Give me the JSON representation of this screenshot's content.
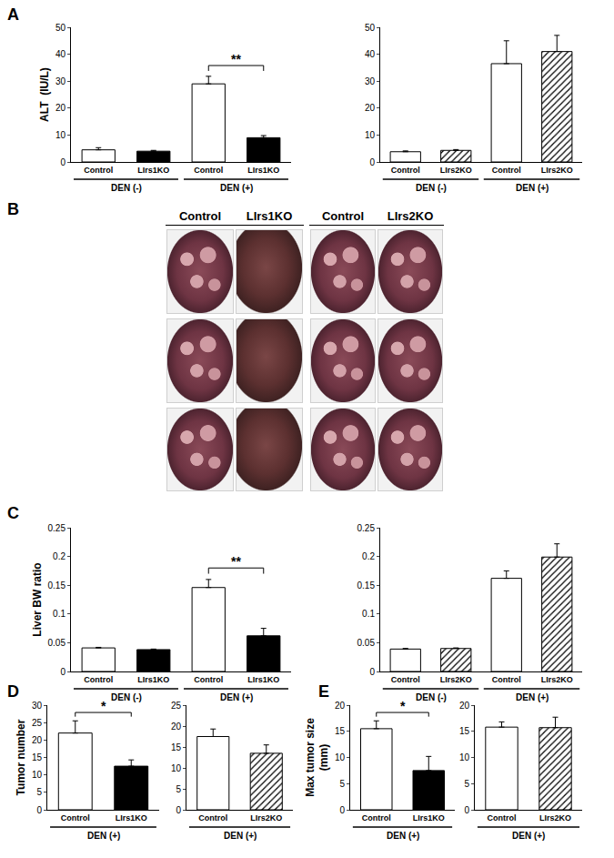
{
  "chart_data": [
    {
      "type": "bar",
      "ylabel": "ALT  (IU/L)",
      "categories": [
        "Control",
        "LIrs1KO",
        "Control",
        "LIrs1KO"
      ],
      "group_labels": [
        "DEN (-)",
        "DEN (-)",
        "DEN (+)",
        "DEN (+)"
      ],
      "ylim": [
        0,
        50
      ],
      "yticks": [
        0,
        10,
        20,
        30,
        40,
        50
      ],
      "series": [
        {
          "color": "#ffffff",
          "marker": "solid",
          "values": [
            4.5,
            null,
            29,
            null
          ],
          "errors": [
            0.8,
            null,
            2.8,
            null
          ]
        },
        {
          "color": "#000000",
          "marker": "solid",
          "values": [
            null,
            4,
            null,
            9
          ],
          "errors": [
            null,
            0.3,
            null,
            0.8
          ]
        }
      ],
      "annotations": [
        {
          "text": "**",
          "between": [
            2,
            3
          ]
        }
      ]
    },
    {
      "type": "bar",
      "categories": [
        "Control",
        "LIrs2KO",
        "Control",
        "LIrs2KO"
      ],
      "group_labels": [
        "DEN (-)",
        "DEN (-)",
        "DEN (+)",
        "DEN (+)"
      ],
      "ylim": [
        0,
        50
      ],
      "yticks": [
        0,
        10,
        20,
        30,
        40,
        50
      ],
      "series": [
        {
          "color": "#ffffff",
          "marker": "solid",
          "values": [
            3.8,
            null,
            36.5,
            null
          ],
          "errors": [
            0.3,
            null,
            8.5,
            null
          ]
        },
        {
          "color": "#ffffff",
          "marker": "hatched",
          "values": [
            null,
            4.3,
            null,
            41
          ],
          "errors": [
            null,
            0.3,
            null,
            6
          ]
        }
      ]
    },
    {
      "type": "bar",
      "ylabel": "Liver BW ratio",
      "categories": [
        "Control",
        "LIrs1KO",
        "Control",
        "LIrs1KO"
      ],
      "group_labels": [
        "DEN (-)",
        "DEN (-)",
        "DEN (+)",
        "DEN (+)"
      ],
      "ylim": [
        0,
        0.25
      ],
      "yticks": [
        0,
        0.05,
        0.1,
        0.15,
        0.2,
        0.25
      ],
      "series": [
        {
          "color": "#ffffff",
          "marker": "solid",
          "values": [
            0.041,
            null,
            0.146,
            null
          ],
          "errors": [
            0.001,
            null,
            0.014,
            null
          ]
        },
        {
          "color": "#000000",
          "marker": "solid",
          "values": [
            null,
            0.038,
            null,
            0.062
          ],
          "errors": [
            null,
            0.001,
            null,
            0.013
          ]
        }
      ],
      "annotations": [
        {
          "text": "**",
          "between": [
            2,
            3
          ]
        }
      ]
    },
    {
      "type": "bar",
      "categories": [
        "Control",
        "LIrs2KO",
        "Control",
        "LIrs2KO"
      ],
      "group_labels": [
        "DEN (-)",
        "DEN (-)",
        "DEN (+)",
        "DEN (+)"
      ],
      "ylim": [
        0,
        0.25
      ],
      "yticks": [
        0,
        0.05,
        0.1,
        0.15,
        0.2,
        0.25
      ],
      "series": [
        {
          "color": "#ffffff",
          "marker": "solid",
          "values": [
            0.039,
            null,
            0.162,
            null
          ],
          "errors": [
            0.001,
            null,
            0.013,
            null
          ]
        },
        {
          "color": "#ffffff",
          "marker": "hatched",
          "values": [
            null,
            0.04,
            null,
            0.199
          ],
          "errors": [
            null,
            0.001,
            null,
            0.023
          ]
        }
      ]
    },
    {
      "type": "bar",
      "ylabel": "Tumor number",
      "categories": [
        "Control",
        "LIrs1KO"
      ],
      "group_labels": [
        "DEN (+)",
        "DEN (+)"
      ],
      "ylim": [
        0,
        30
      ],
      "yticks": [
        0,
        5,
        10,
        15,
        20,
        25,
        30
      ],
      "series": [
        {
          "color": "#ffffff",
          "marker": "solid",
          "values": [
            22,
            null
          ],
          "errors": [
            3.5,
            null
          ]
        },
        {
          "color": "#000000",
          "marker": "solid",
          "values": [
            null,
            12.5
          ],
          "errors": [
            null,
            1.8
          ]
        }
      ],
      "annotations": [
        {
          "text": "*",
          "between": [
            0,
            1
          ]
        }
      ]
    },
    {
      "type": "bar",
      "categories": [
        "Control",
        "LIrs2KO"
      ],
      "group_labels": [
        "DEN (+)",
        "DEN (+)"
      ],
      "ylim": [
        0,
        25
      ],
      "yticks": [
        0,
        5,
        10,
        15,
        20,
        25
      ],
      "series": [
        {
          "color": "#ffffff",
          "marker": "solid",
          "values": [
            17.5,
            null
          ],
          "errors": [
            1.8,
            null
          ]
        },
        {
          "color": "#ffffff",
          "marker": "hatched",
          "values": [
            null,
            13.5
          ],
          "errors": [
            null,
            2
          ]
        }
      ]
    },
    {
      "type": "bar",
      "ylabel": "Max tumor size\n(mm)",
      "categories": [
        "Control",
        "LIrs1KO"
      ],
      "group_labels": [
        "DEN (+)",
        "DEN (+)"
      ],
      "ylim": [
        0,
        20
      ],
      "yticks": [
        0,
        5,
        10,
        15,
        20
      ],
      "series": [
        {
          "color": "#ffffff",
          "marker": "solid",
          "values": [
            15.5,
            null
          ],
          "errors": [
            1.5,
            null
          ]
        },
        {
          "color": "#000000",
          "marker": "solid",
          "values": [
            null,
            7.5
          ],
          "errors": [
            null,
            2.7
          ]
        }
      ],
      "annotations": [
        {
          "text": "*",
          "between": [
            0,
            1
          ]
        }
      ]
    },
    {
      "type": "bar",
      "categories": [
        "Control",
        "LIrs2KO"
      ],
      "group_labels": [
        "DEN (+)",
        "DEN (+)"
      ],
      "ylim": [
        0,
        20
      ],
      "yticks": [
        0,
        5,
        10,
        15,
        20
      ],
      "series": [
        {
          "color": "#ffffff",
          "marker": "solid",
          "values": [
            15.8,
            null
          ],
          "errors": [
            1,
            null
          ]
        },
        {
          "color": "#ffffff",
          "marker": "hatched",
          "values": [
            null,
            15.7
          ],
          "errors": [
            null,
            2
          ]
        }
      ]
    }
  ],
  "panel_labels": [
    "A",
    "B",
    "C",
    "D",
    "E"
  ],
  "photo_headers": [
    [
      "Control",
      "LIrs1KO"
    ],
    [
      "Control",
      "LIrs2KO"
    ]
  ]
}
